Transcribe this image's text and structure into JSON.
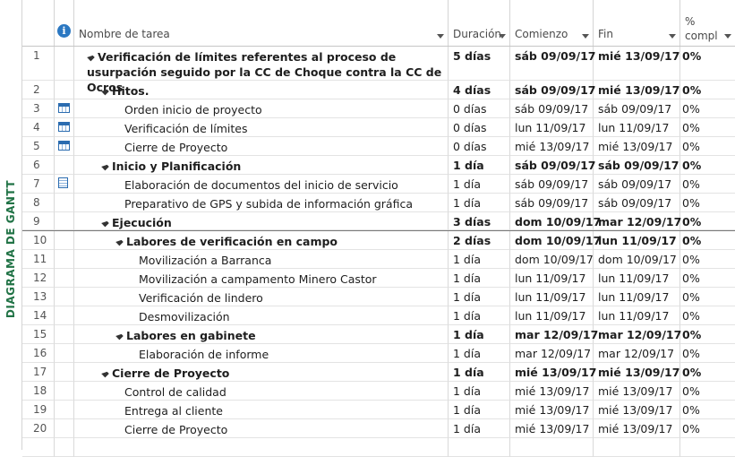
{
  "sidebar": {
    "label": "DIAGRAMA DE GANTT"
  },
  "header": {
    "info_symbol": "i",
    "name": "Nombre de tarea",
    "duration": "Duración",
    "start": "Comienzo",
    "end": "Fin",
    "pct_line1": "%",
    "pct_line2": "compl"
  },
  "tasks": [
    {
      "id": "1",
      "level": 0,
      "summary": true,
      "name": "Verificación de límites referentes al proceso de usurpación seguido por la CC de Choque contra la CC de Ocros",
      "duration": "5 días",
      "start": "sáb 09/09/17",
      "end": "mié 13/09/17",
      "pct": "0%",
      "indicator": ""
    },
    {
      "id": "2",
      "level": 1,
      "summary": true,
      "name": "Hitos.",
      "duration": "4 días",
      "start": "sáb 09/09/17",
      "end": "mié 13/09/17",
      "pct": "0%",
      "indicator": ""
    },
    {
      "id": "3",
      "level": 2,
      "summary": false,
      "name": "Orden inicio de proyecto",
      "duration": "0 días",
      "start": "sáb 09/09/17",
      "end": "sáb 09/09/17",
      "pct": "0%",
      "indicator": "calendar-icon"
    },
    {
      "id": "4",
      "level": 2,
      "summary": false,
      "name": "Verificación de límites",
      "duration": "0 días",
      "start": "lun 11/09/17",
      "end": "lun 11/09/17",
      "pct": "0%",
      "indicator": "calendar-icon"
    },
    {
      "id": "5",
      "level": 2,
      "summary": false,
      "name": "Cierre de Proyecto",
      "duration": "0 días",
      "start": "mié 13/09/17",
      "end": "mié 13/09/17",
      "pct": "0%",
      "indicator": "calendar-icon"
    },
    {
      "id": "6",
      "level": 1,
      "summary": true,
      "name": "Inicio y Planificación",
      "duration": "1 día",
      "start": "sáb 09/09/17",
      "end": "sáb 09/09/17",
      "pct": "0%",
      "indicator": ""
    },
    {
      "id": "7",
      "level": 2,
      "summary": false,
      "name": "Elaboración de documentos del inicio de servicio",
      "duration": "1 día",
      "start": "sáb 09/09/17",
      "end": "sáb 09/09/17",
      "pct": "0%",
      "indicator": "note-icon"
    },
    {
      "id": "8",
      "level": 2,
      "summary": false,
      "name": "Preparativo de GPS y subida de información gráfica",
      "duration": "1 día",
      "start": "sáb 09/09/17",
      "end": "sáb 09/09/17",
      "pct": "0%",
      "indicator": ""
    },
    {
      "id": "9",
      "level": 1,
      "summary": true,
      "name": "Ejecución",
      "duration": "3 días",
      "start": "dom 10/09/17",
      "end": "mar 12/09/17",
      "pct": "0%",
      "indicator": ""
    },
    {
      "id": "10",
      "level": 2,
      "summary": true,
      "name": "Labores de verificación en campo",
      "duration": "2 días",
      "start": "dom 10/09/17",
      "end": "lun 11/09/17",
      "pct": "0%",
      "indicator": ""
    },
    {
      "id": "11",
      "level": 3,
      "summary": false,
      "name": "Movilización a Barranca",
      "duration": "1 día",
      "start": "dom 10/09/17",
      "end": "dom 10/09/17",
      "pct": "0%",
      "indicator": ""
    },
    {
      "id": "12",
      "level": 3,
      "summary": false,
      "name": "Movilización a campamento Minero Castor",
      "duration": "1 día",
      "start": "lun 11/09/17",
      "end": "lun 11/09/17",
      "pct": "0%",
      "indicator": ""
    },
    {
      "id": "13",
      "level": 3,
      "summary": false,
      "name": "Verificación de lindero",
      "duration": "1 día",
      "start": "lun 11/09/17",
      "end": "lun 11/09/17",
      "pct": "0%",
      "indicator": ""
    },
    {
      "id": "14",
      "level": 3,
      "summary": false,
      "name": "Desmovilización",
      "duration": "1 día",
      "start": "lun 11/09/17",
      "end": "lun 11/09/17",
      "pct": "0%",
      "indicator": ""
    },
    {
      "id": "15",
      "level": 2,
      "summary": true,
      "name": "Labores en gabinete",
      "duration": "1 día",
      "start": "mar 12/09/17",
      "end": "mar 12/09/17",
      "pct": "0%",
      "indicator": ""
    },
    {
      "id": "16",
      "level": 3,
      "summary": false,
      "name": "Elaboración de informe",
      "duration": "1 día",
      "start": "mar 12/09/17",
      "end": "mar 12/09/17",
      "pct": "0%",
      "indicator": ""
    },
    {
      "id": "17",
      "level": 1,
      "summary": true,
      "name": "Cierre de Proyecto",
      "duration": "1 día",
      "start": "mié 13/09/17",
      "end": "mié 13/09/17",
      "pct": "0%",
      "indicator": ""
    },
    {
      "id": "18",
      "level": 2,
      "summary": false,
      "name": "Control de calidad",
      "duration": "1 día",
      "start": "mié 13/09/17",
      "end": "mié 13/09/17",
      "pct": "0%",
      "indicator": ""
    },
    {
      "id": "19",
      "level": 2,
      "summary": false,
      "name": "Entrega al cliente",
      "duration": "1 día",
      "start": "mié 13/09/17",
      "end": "mié 13/09/17",
      "pct": "0%",
      "indicator": ""
    },
    {
      "id": "20",
      "level": 2,
      "summary": false,
      "name": "Cierre de Proyecto",
      "duration": "1 día",
      "start": "mié 13/09/17",
      "end": "mié 13/09/17",
      "pct": "0%",
      "indicator": ""
    }
  ]
}
